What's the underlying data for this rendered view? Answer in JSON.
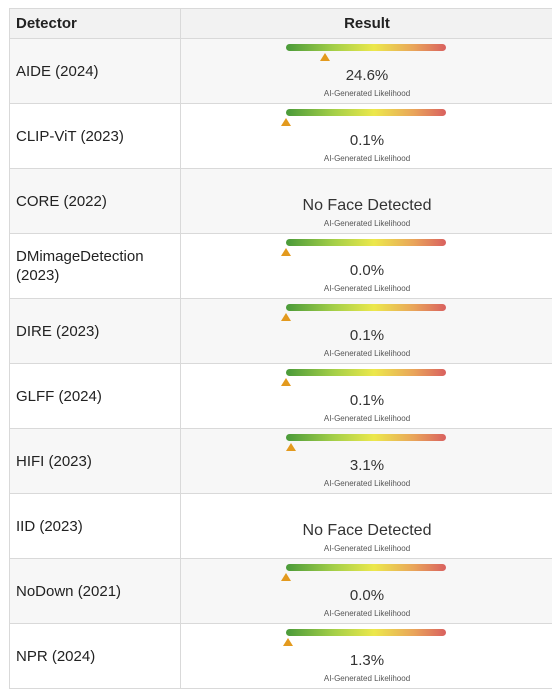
{
  "header": {
    "detector": "Detector",
    "result": "Result"
  },
  "caption": "AI-Generated Likelihood",
  "rows": [
    {
      "name": "AIDE (2024)",
      "value": "24.6%",
      "level": 0.246,
      "face": true
    },
    {
      "name": "CLIP-ViT (2023)",
      "value": "0.1%",
      "level": 0.001,
      "face": true
    },
    {
      "name": "CORE (2022)",
      "value": "No Face Detected",
      "level": null,
      "face": false
    },
    {
      "name": "DMimageDetection (2023)",
      "value": "0.0%",
      "level": 0.0,
      "face": true
    },
    {
      "name": "DIRE (2023)",
      "value": "0.1%",
      "level": 0.001,
      "face": true
    },
    {
      "name": "GLFF (2024)",
      "value": "0.1%",
      "level": 0.001,
      "face": true
    },
    {
      "name": "HIFI (2023)",
      "value": "3.1%",
      "level": 0.031,
      "face": true
    },
    {
      "name": "IID (2023)",
      "value": "No Face Detected",
      "level": null,
      "face": false
    },
    {
      "name": "NoDown (2021)",
      "value": "0.0%",
      "level": 0.0,
      "face": true
    },
    {
      "name": "NPR (2024)",
      "value": "1.3%",
      "level": 0.013,
      "face": true
    }
  ]
}
